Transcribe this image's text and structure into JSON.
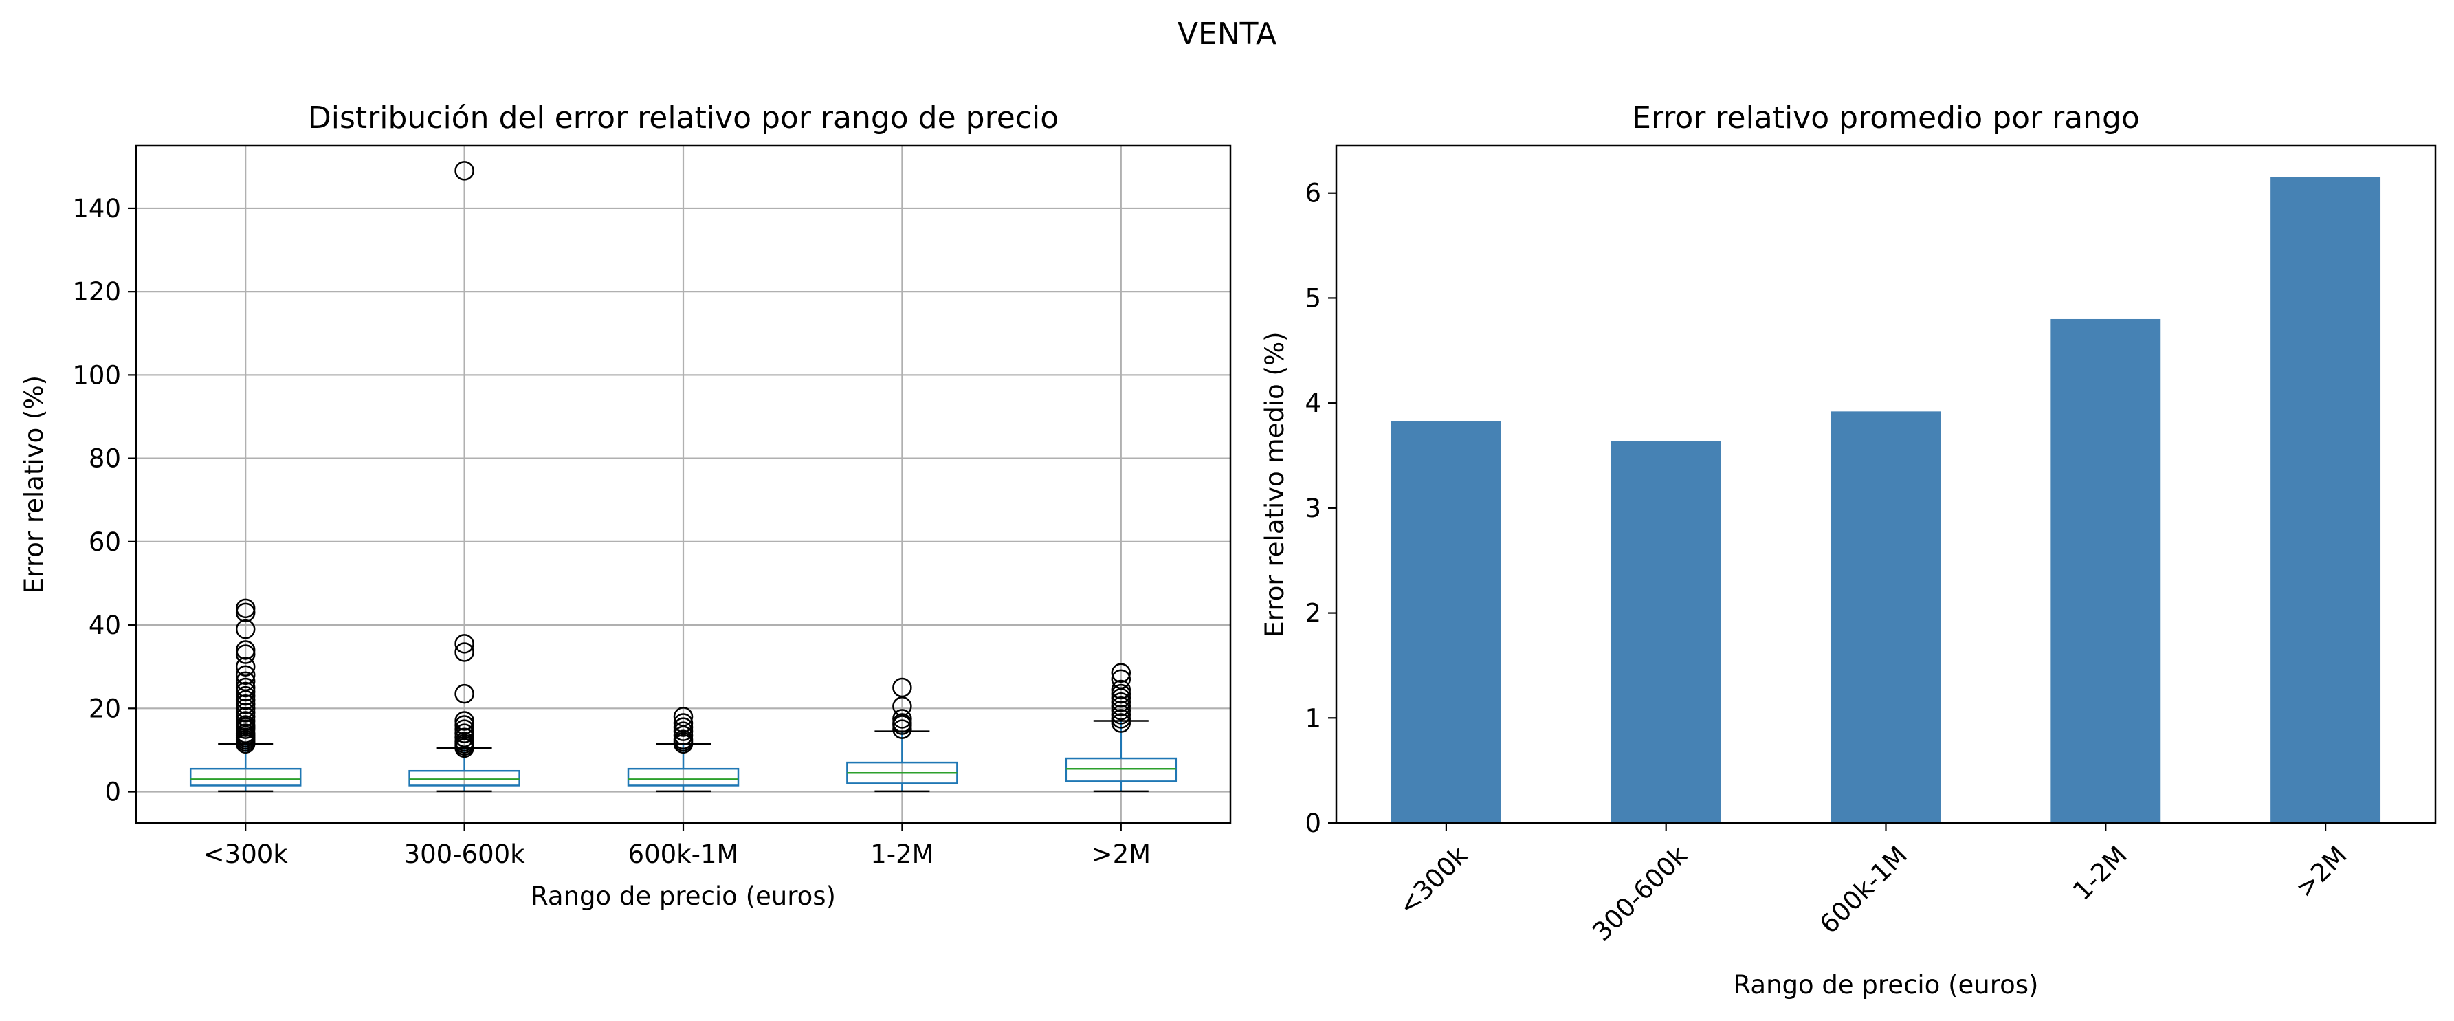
{
  "figure": {
    "suptitle": "VENTA"
  },
  "chart_data": [
    {
      "type": "box",
      "title": "Distribución del error relativo por rango de precio",
      "xlabel": "Rango de precio (euros)",
      "ylabel": "Error relativo (%)",
      "ylim": [
        -7.5,
        155
      ],
      "yticks": [
        0,
        20,
        40,
        60,
        80,
        100,
        120,
        140
      ],
      "grid": true,
      "legend": "none",
      "categories": [
        "<300k",
        "300-600k",
        "600k-1M",
        "1-2M",
        ">2M"
      ],
      "box_color": "#1f77b4",
      "median_color": "#2ca02c",
      "boxes": [
        {
          "whisker_low": 0.1,
          "q1": 1.5,
          "median": 3.0,
          "q3": 5.5,
          "whisker_high": 11.5,
          "outliers": [
            11.5,
            12,
            12.5,
            13,
            13.5,
            14,
            15,
            15.5,
            16,
            17,
            18,
            19,
            20,
            21,
            22,
            23,
            24,
            25,
            26.5,
            28,
            30,
            33,
            34,
            39,
            43,
            44
          ]
        },
        {
          "whisker_low": 0.1,
          "q1": 1.5,
          "median": 3.0,
          "q3": 5.0,
          "whisker_high": 10.5,
          "outliers": [
            10.5,
            11,
            11.5,
            12,
            13,
            14,
            15,
            16,
            17,
            23.5,
            33.5,
            35.5,
            149
          ]
        },
        {
          "whisker_low": 0.1,
          "q1": 1.5,
          "median": 3.0,
          "q3": 5.5,
          "whisker_high": 11.5,
          "outliers": [
            11.5,
            12,
            12.5,
            13.5,
            14.5,
            15.5,
            16.5,
            18
          ]
        },
        {
          "whisker_low": 0.1,
          "q1": 2.0,
          "median": 4.5,
          "q3": 7.0,
          "whisker_high": 14.5,
          "outliers": [
            15,
            16,
            16.5,
            17.5,
            20.5,
            25
          ]
        },
        {
          "whisker_low": 0.1,
          "q1": 2.5,
          "median": 5.5,
          "q3": 8.0,
          "whisker_high": 17.0,
          "outliers": [
            16.5,
            17.5,
            18.5,
            19.5,
            20.5,
            21.5,
            22.5,
            23.5,
            24.5,
            27,
            28.5
          ]
        }
      ]
    },
    {
      "type": "bar",
      "title": "Error relativo promedio por rango",
      "xlabel": "Rango de precio (euros)",
      "ylabel": "Error relativo medio (%)",
      "ylim": [
        0,
        6.45
      ],
      "yticks": [
        0,
        1,
        2,
        3,
        4,
        5,
        6
      ],
      "grid": false,
      "legend": "none",
      "xtick_rotation": 45,
      "categories": [
        "<300k",
        "300-600k",
        "600k-1M",
        "1-2M",
        ">2M"
      ],
      "values": [
        3.83,
        3.64,
        3.92,
        4.8,
        6.15
      ],
      "bar_color": "#4682b4"
    }
  ]
}
